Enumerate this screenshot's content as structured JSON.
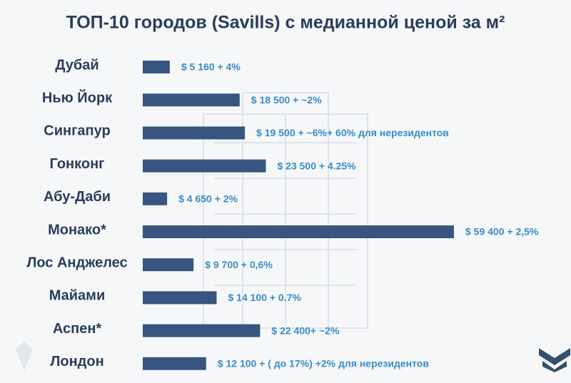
{
  "chart_data": {
    "type": "hbar",
    "title": "ТОП-10 городов (Savills) с медианной ценой за м²",
    "categories": [
      "Дубай",
      "Нью Йорк",
      "Сингапур",
      "Гонконг",
      "Абу-Даби",
      "Монако*",
      "Лос Анджелес",
      "Майами",
      "Аспен*",
      "Лондон"
    ],
    "values": [
      5160,
      18500,
      19500,
      23500,
      4650,
      59400,
      9700,
      14100,
      22400,
      12100
    ],
    "value_labels": [
      "$ 5 160 + 4%",
      "$ 18 500 + ~2%",
      "$ 19 500 + ~6%+ 60% для нерезидентов",
      "$ 23 500 + 4.25%",
      "$ 4 650 + 2%",
      "$ 59 400 + 2,5%",
      "$ 9 700 + 0,6%",
      "$ 14 100 + 0.7%",
      "$ 22 400+ ~2%",
      "$ 12 100 + ( до 17%) +2% для нерезидентов"
    ],
    "color": "#37557f"
  }
}
